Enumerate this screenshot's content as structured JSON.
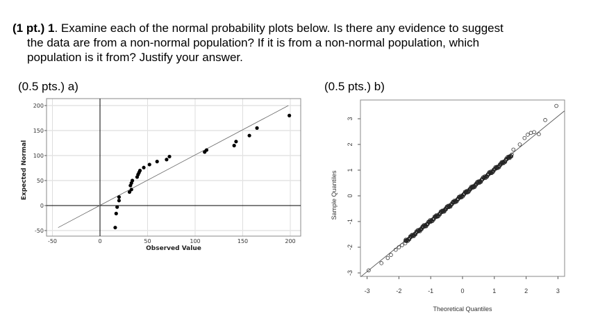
{
  "question": {
    "points": "(1 pt.)",
    "number": "1",
    "line1": ". Examine each of the normal probability plots below. Is there any evidence to suggest",
    "line2": "the data are from a non-normal population? If it is from a non-normal population, which",
    "line3": "population is it from? Justify your answer."
  },
  "parts": {
    "a_label": "(0.5 pts.) a)",
    "b_label": "(0.5 pts.) b)"
  },
  "chart_data": [
    {
      "type": "scatter",
      "title": "",
      "xlabel": "Observed Value",
      "ylabel": "Expected Normal",
      "xlim": [
        -55,
        210
      ],
      "ylim": [
        -52,
        205
      ],
      "xticks": [
        -50,
        0,
        50,
        100,
        150,
        200
      ],
      "yticks": [
        -50,
        0,
        50,
        100,
        150,
        200
      ],
      "grid": true,
      "reference_line": {
        "from": [
          -44,
          -44
        ],
        "to": [
          198,
          200
        ]
      },
      "points": [
        [
          16,
          -44
        ],
        [
          17,
          -16
        ],
        [
          18,
          -3
        ],
        [
          20,
          10
        ],
        [
          20,
          17
        ],
        [
          31,
          27
        ],
        [
          33,
          32
        ],
        [
          32,
          40
        ],
        [
          33,
          45
        ],
        [
          34,
          50
        ],
        [
          39,
          57
        ],
        [
          40,
          62
        ],
        [
          41,
          66
        ],
        [
          42,
          70
        ],
        [
          46,
          76
        ],
        [
          52,
          82
        ],
        [
          60,
          88
        ],
        [
          70,
          92
        ],
        [
          73,
          98
        ],
        [
          110,
          107
        ],
        [
          112,
          111
        ],
        [
          141,
          120
        ],
        [
          143,
          128
        ],
        [
          157,
          140
        ],
        [
          165,
          155
        ],
        [
          199,
          180
        ]
      ]
    },
    {
      "type": "scatter",
      "title": "",
      "xlabel": "Theoretical Quantiles",
      "ylabel": "Sample Quantiles",
      "xlim": [
        -3.2,
        3.2
      ],
      "ylim": [
        -3.2,
        3.6
      ],
      "xticks": [
        -3,
        -2,
        -1,
        0,
        1,
        2,
        3
      ],
      "yticks": [
        -3,
        -2,
        -1,
        0,
        1,
        2,
        3
      ],
      "grid": false,
      "reference_line": {
        "from": [
          -3.2,
          -3.15
        ],
        "to": [
          3.2,
          3.3
        ]
      },
      "marker": "open-circle",
      "points_description": "Dense points closely following the line from about -3 to 2; upper tail deviates above the line",
      "tail_points": [
        [
          -2.95,
          -2.9
        ],
        [
          -2.55,
          -2.62
        ],
        [
          -2.35,
          -2.42
        ],
        [
          -2.25,
          -2.3
        ],
        [
          -2.1,
          -2.1
        ],
        [
          -2.0,
          -2.0
        ],
        [
          -1.9,
          -1.92
        ],
        [
          -1.8,
          -1.85
        ],
        [
          1.6,
          1.8
        ],
        [
          1.8,
          2.0
        ],
        [
          1.95,
          2.25
        ],
        [
          2.05,
          2.38
        ],
        [
          2.15,
          2.45
        ],
        [
          2.25,
          2.48
        ],
        [
          2.4,
          2.4
        ],
        [
          2.6,
          2.95
        ],
        [
          2.95,
          3.5
        ]
      ]
    }
  ]
}
